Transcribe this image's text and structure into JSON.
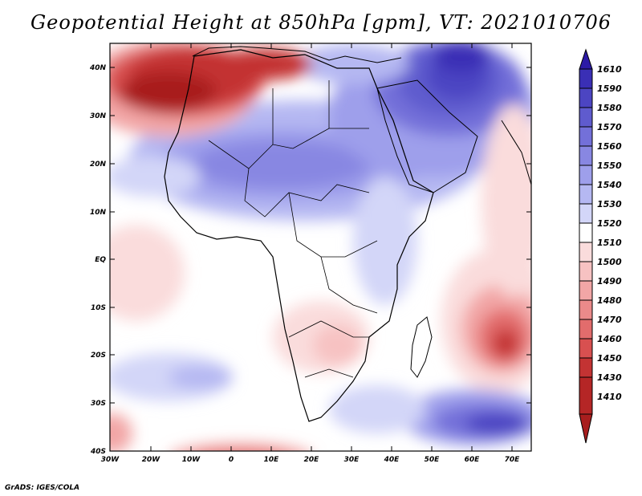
{
  "title": "Geopotential Height at 850hPa [gpm], VT: 2021010706",
  "footer": "GrADS: IGES/COLA",
  "map": {
    "lat_labels": [
      "40N",
      "30N",
      "20N",
      "10N",
      "EQ",
      "10S",
      "20S",
      "30S",
      "40S"
    ],
    "lon_labels": [
      "30W",
      "20W",
      "10W",
      "0",
      "10E",
      "20E",
      "30E",
      "40E",
      "50E",
      "60E",
      "70E"
    ]
  },
  "colorbar": {
    "levels": [
      "1610",
      "1590",
      "1580",
      "1570",
      "1560",
      "1550",
      "1540",
      "1530",
      "1520",
      "1510",
      "1500",
      "1490",
      "1480",
      "1470",
      "1460",
      "1450",
      "1430",
      "1410"
    ],
    "colors": {
      "c1610": "#2c1aa6",
      "c1590": "#3a2fb5",
      "c1580": "#4c45c2",
      "c1570": "#5f5bce",
      "c1560": "#7370d9",
      "c1550": "#8887e2",
      "c1540": "#9e9feb",
      "c1530": "#b5b8f2",
      "c1520": "#d3d6f8",
      "c1510": "#ffffff",
      "c1500": "#fadcdc",
      "c1490": "#f7c2c2",
      "c1480": "#f2a6a6",
      "c1470": "#eb8a8a",
      "c1460": "#e26c6c",
      "c1450": "#d85050",
      "c1430": "#c33333",
      "c1410": "#a81e1e"
    }
  }
}
